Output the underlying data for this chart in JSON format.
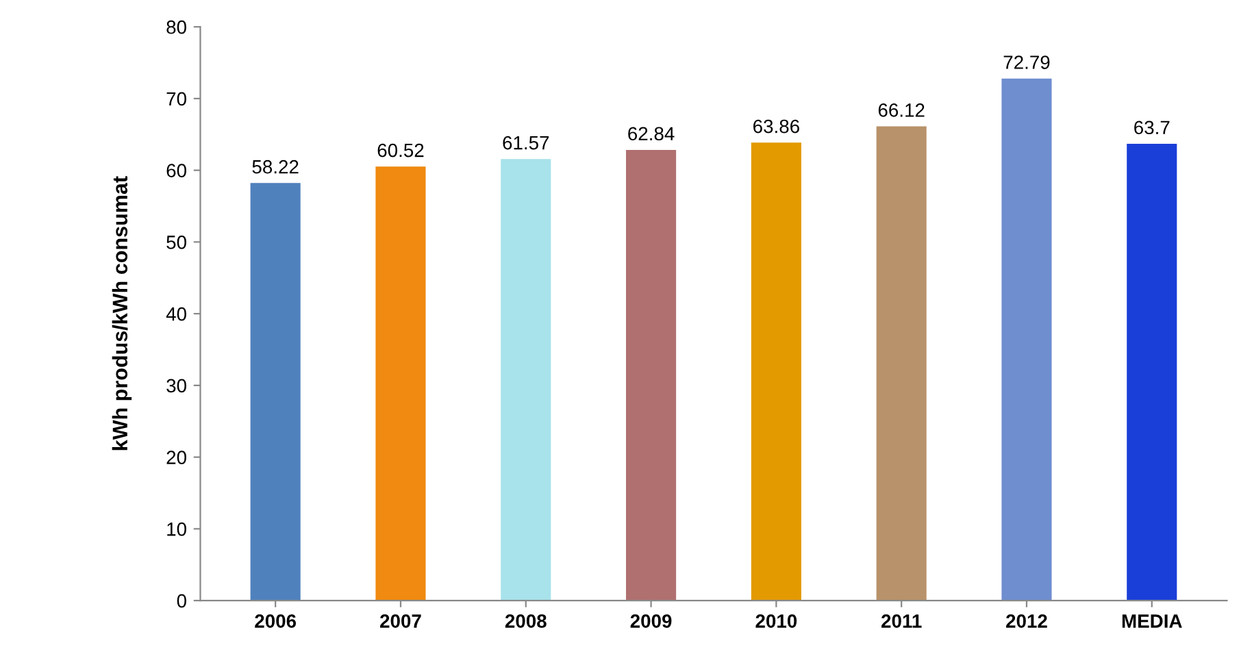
{
  "chart_data": {
    "type": "bar",
    "ylabel": "kWh produs/kWh consumat",
    "categories": [
      "2006",
      "2007",
      "2008",
      "2009",
      "2010",
      "2011",
      "2012",
      "MEDIA"
    ],
    "values": [
      58.22,
      60.52,
      61.57,
      62.84,
      63.86,
      66.12,
      72.79,
      63.7
    ],
    "colors": [
      "#4f81bd",
      "#f08a10",
      "#a8e2ea",
      "#b07070",
      "#e39a00",
      "#b8926a",
      "#6e8ecf",
      "#1a3fd8"
    ],
    "ylim": [
      0,
      80
    ],
    "yticks": [
      0,
      10,
      20,
      30,
      40,
      50,
      60,
      70,
      80
    ],
    "data_labels": true,
    "grid": false
  }
}
